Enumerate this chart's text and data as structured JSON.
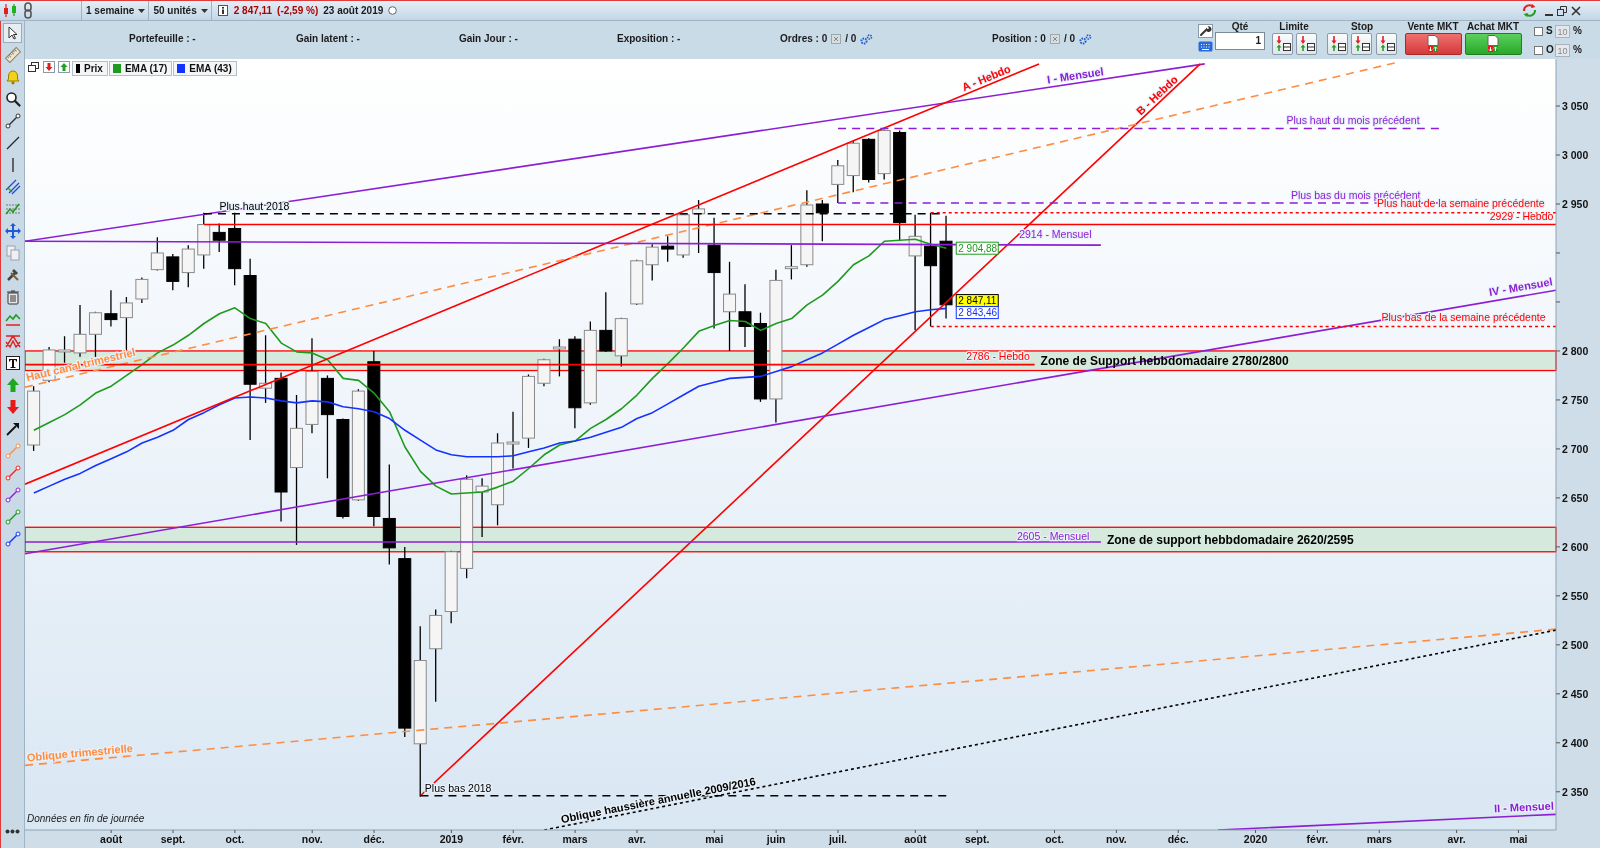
{
  "chart_data": {
    "type": "candlestick",
    "x": [
      "2018-07-02",
      "2018-07-09",
      "2018-07-16",
      "2018-07-23",
      "2018-07-30",
      "2018-08-06",
      "2018-08-13",
      "2018-08-20",
      "2018-08-27",
      "2018-09-03",
      "2018-09-10",
      "2018-09-17",
      "2018-09-24",
      "2018-10-01",
      "2018-10-08",
      "2018-10-15",
      "2018-10-22",
      "2018-10-29",
      "2018-11-05",
      "2018-11-12",
      "2018-11-19",
      "2018-11-26",
      "2018-12-03",
      "2018-12-10",
      "2018-12-17",
      "2018-12-24",
      "2018-12-31",
      "2019-01-07",
      "2019-01-14",
      "2019-01-21",
      "2019-01-28",
      "2019-02-04",
      "2019-02-11",
      "2019-02-18",
      "2019-02-25",
      "2019-03-04",
      "2019-03-11",
      "2019-03-18",
      "2019-03-25",
      "2019-04-01",
      "2019-04-08",
      "2019-04-15",
      "2019-04-22",
      "2019-04-29",
      "2019-05-06",
      "2019-05-13",
      "2019-05-20",
      "2019-05-27",
      "2019-06-03",
      "2019-06-10",
      "2019-06-17",
      "2019-06-24",
      "2019-07-01",
      "2019-07-08",
      "2019-07-15",
      "2019-07-22",
      "2019-07-29",
      "2019-08-05",
      "2019-08-12",
      "2019-08-19"
    ],
    "xlim": [
      "2018-06-28",
      "2020-05-21"
    ],
    "xticks": [
      {
        "value": "2018-08-06",
        "label": "août"
      },
      {
        "value": "2018-09-03",
        "label": "sept."
      },
      {
        "value": "2018-10-01",
        "label": "oct."
      },
      {
        "value": "2018-11-05",
        "label": "nov."
      },
      {
        "value": "2018-12-03",
        "label": "déc."
      },
      {
        "value": "2019-01-07",
        "label": "2019"
      },
      {
        "value": "2019-02-04",
        "label": "févr."
      },
      {
        "value": "2019-03-04",
        "label": "mars"
      },
      {
        "value": "2019-04-01",
        "label": "avr."
      },
      {
        "value": "2019-05-06",
        "label": "mai"
      },
      {
        "value": "2019-06-03",
        "label": "juin"
      },
      {
        "value": "2019-07-01",
        "label": "juil."
      },
      {
        "value": "2019-08-05",
        "label": "août"
      },
      {
        "value": "2019-09-02",
        "label": "sept."
      },
      {
        "value": "2019-10-07",
        "label": "oct."
      },
      {
        "value": "2019-11-04",
        "label": "nov."
      },
      {
        "value": "2019-12-02",
        "label": "déc."
      },
      {
        "value": "2020-01-06",
        "label": "2020"
      },
      {
        "value": "2020-02-03",
        "label": "févr."
      },
      {
        "value": "2020-03-02",
        "label": "mars"
      },
      {
        "value": "2020-04-06",
        "label": "avr."
      },
      {
        "value": "2020-05-04",
        "label": "mai"
      }
    ],
    "ylim": [
      2311,
      3098
    ],
    "yticks": [
      {
        "value": 2350,
        "label": "2 350"
      },
      {
        "value": 2400,
        "label": "2 400"
      },
      {
        "value": 2450,
        "label": "2 450"
      },
      {
        "value": 2500,
        "label": "2 500"
      },
      {
        "value": 2550,
        "label": "2 550"
      },
      {
        "value": 2600,
        "label": "2 600"
      },
      {
        "value": 2650,
        "label": "2 650"
      },
      {
        "value": 2700,
        "label": "2 700"
      },
      {
        "value": 2750,
        "label": "2 750"
      },
      {
        "value": 2800,
        "label": "2 800"
      },
      {
        "value": 2850,
        "label": null
      },
      {
        "value": 2900,
        "label": null
      },
      {
        "value": 2950,
        "label": "2 950"
      },
      {
        "value": 3000,
        "label": "3 000"
      },
      {
        "value": 3050,
        "label": "3 050"
      }
    ],
    "legend": "top left",
    "series": [
      {
        "name": "Prix",
        "color": "#000000",
        "colors": [
          "#f5f5f5",
          "#f5f5f5",
          "#f5f5f5",
          "#f5f5f5",
          "#f5f5f5",
          "#000000",
          "#f5f5f5",
          "#f5f5f5",
          "#f5f5f5",
          "#000000",
          "#f5f5f5",
          "#f5f5f5",
          "#000000",
          "#000000",
          "#000000",
          "#f5f5f5",
          "#000000",
          "#f5f5f5",
          "#f5f5f5",
          "#000000",
          "#000000",
          "#f5f5f5",
          "#000000",
          "#000000",
          "#000000",
          "#f5f5f5",
          "#f5f5f5",
          "#f5f5f5",
          "#f5f5f5",
          "#f5f5f5",
          "#f5f5f5",
          "#f5f5f5",
          "#f5f5f5",
          "#f5f5f5",
          "#f5f5f5",
          "#000000",
          "#f5f5f5",
          "#000000",
          "#f5f5f5",
          "#f5f5f5",
          "#f5f5f5",
          "#000000",
          "#f5f5f5",
          "#f5f5f5",
          "#000000",
          "#f5f5f5",
          "#000000",
          "#000000",
          "#f5f5f5",
          "#f5f5f5",
          "#f5f5f5",
          "#000000",
          "#f5f5f5",
          "#f5f5f5",
          "#000000",
          "#f5f5f5",
          "#000000",
          "#f5f5f5",
          "#000000",
          "#000000"
        ],
        "ohlc": [
          [
            2704,
            2764,
            2698,
            2759
          ],
          [
            2770,
            2804,
            2768,
            2801
          ],
          [
            2799,
            2815,
            2788,
            2801
          ],
          [
            2798,
            2847,
            2794,
            2817
          ],
          [
            2817,
            2840,
            2794,
            2839
          ],
          [
            2838,
            2862,
            2825,
            2832
          ],
          [
            2834,
            2855,
            2801,
            2849
          ],
          [
            2853,
            2875,
            2849,
            2873
          ],
          [
            2883,
            2916,
            2882,
            2900
          ],
          [
            2896,
            2899,
            2862,
            2871
          ],
          [
            2880,
            2908,
            2865,
            2904
          ],
          [
            2898,
            2941,
            2884,
            2929
          ],
          [
            2921,
            2930,
            2901,
            2913
          ],
          [
            2925,
            2941,
            2867,
            2884
          ],
          [
            2877,
            2894,
            2709,
            2766
          ],
          [
            2762,
            2816,
            2747,
            2767
          ],
          [
            2772,
            2778,
            2626,
            2656
          ],
          [
            2681,
            2755,
            2602,
            2721
          ],
          [
            2725,
            2813,
            2716,
            2779
          ],
          [
            2772,
            2775,
            2670,
            2735
          ],
          [
            2730,
            2731,
            2629,
            2631
          ],
          [
            2648,
            2761,
            2647,
            2759
          ],
          [
            2789,
            2800,
            2621,
            2631
          ],
          [
            2629,
            2684,
            2582,
            2599
          ],
          [
            2588,
            2600,
            2406,
            2415
          ],
          [
            2399,
            2519,
            2345,
            2484
          ],
          [
            2496,
            2536,
            2442,
            2530
          ],
          [
            2534,
            2596,
            2522,
            2595
          ],
          [
            2578,
            2673,
            2568,
            2669
          ],
          [
            2656,
            2670,
            2610,
            2662
          ],
          [
            2643,
            2716,
            2622,
            2706
          ],
          [
            2705,
            2738,
            2680,
            2707
          ],
          [
            2711,
            2776,
            2701,
            2774
          ],
          [
            2767,
            2792,
            2764,
            2791
          ],
          [
            2802,
            2812,
            2774,
            2804
          ],
          [
            2812,
            2815,
            2721,
            2742
          ],
          [
            2747,
            2830,
            2745,
            2821
          ],
          [
            2821,
            2860,
            2799,
            2800
          ],
          [
            2795,
            2834,
            2784,
            2833
          ],
          [
            2848,
            2893,
            2847,
            2892
          ],
          [
            2888,
            2909,
            2872,
            2906
          ],
          [
            2907,
            2917,
            2891,
            2904
          ],
          [
            2898,
            2940,
            2895,
            2939
          ],
          [
            2940,
            2954,
            2900,
            2945
          ],
          [
            2908,
            2936,
            2823,
            2880
          ],
          [
            2840,
            2891,
            2800,
            2858
          ],
          [
            2840,
            2868,
            2804,
            2825
          ],
          [
            2828,
            2839,
            2748,
            2751
          ],
          [
            2751,
            2883,
            2727,
            2872
          ],
          [
            2884,
            2908,
            2873,
            2886
          ],
          [
            2888,
            2964,
            2886,
            2949
          ],
          [
            2950,
            2954,
            2912,
            2941
          ],
          [
            2970,
            2995,
            2951,
            2989
          ],
          [
            2979,
            3014,
            2962,
            3012
          ],
          [
            3016,
            3017,
            2972,
            2975
          ],
          [
            2981,
            3026,
            2975,
            3025
          ],
          [
            3023,
            3025,
            2913,
            2931
          ],
          [
            2897,
            2939,
            2821,
            2917
          ],
          [
            2907,
            2941,
            2825,
            2887
          ],
          [
            2912,
            2938,
            2833,
            2847.11
          ]
        ],
        "value_labels": [
          null,
          null,
          null,
          null,
          null,
          null,
          null,
          null,
          null,
          null,
          null,
          null,
          null,
          null,
          null,
          null,
          null,
          null,
          null,
          null,
          null,
          null,
          null,
          null,
          null,
          null,
          null,
          null,
          null,
          null,
          null,
          null,
          null,
          null,
          null,
          null,
          null,
          null,
          null,
          null,
          null,
          null,
          null,
          null,
          null,
          null,
          null,
          null,
          null,
          null,
          null,
          null,
          null,
          null,
          null,
          null,
          null,
          null,
          null,
          "2 847,11"
        ]
      },
      {
        "name": "EMA (17)",
        "type": "line",
        "color": "#1e9a1e",
        "values": [
          2719,
          2727,
          2735,
          2745,
          2757,
          2764,
          2775,
          2786,
          2798,
          2806,
          2816,
          2828,
          2838,
          2844,
          2833,
          2828,
          2808,
          2799,
          2798,
          2791,
          2772,
          2770,
          2757,
          2738,
          2702,
          2677,
          2662,
          2654,
          2655,
          2656,
          2661,
          2667,
          2680,
          2694,
          2704,
          2708,
          2721,
          2730,
          2741,
          2755,
          2772,
          2787,
          2803,
          2820,
          2826,
          2831,
          2830,
          2821,
          2828,
          2833,
          2847,
          2857,
          2871,
          2888,
          2897,
          2912,
          2913,
          2914,
          2909,
          2904.88
        ],
        "value_labels": [
          null,
          null,
          null,
          null,
          null,
          null,
          null,
          null,
          null,
          null,
          null,
          null,
          null,
          null,
          null,
          null,
          null,
          null,
          null,
          null,
          null,
          null,
          null,
          null,
          null,
          null,
          null,
          null,
          null,
          null,
          null,
          null,
          null,
          null,
          null,
          null,
          null,
          null,
          null,
          null,
          null,
          null,
          null,
          null,
          null,
          null,
          null,
          null,
          null,
          null,
          null,
          null,
          null,
          null,
          null,
          null,
          null,
          null,
          null,
          "2 904,88"
        ]
      },
      {
        "name": "EMA (43)",
        "type": "line",
        "color": "#1432ff",
        "values": [
          2655,
          2662,
          2669,
          2675,
          2683,
          2690,
          2697,
          2706,
          2712,
          2719,
          2730,
          2737,
          2745,
          2752,
          2753,
          2752,
          2749,
          2747,
          2749,
          2748,
          2743,
          2741,
          2738,
          2731,
          2719,
          2709,
          2699,
          2694,
          2692,
          2692,
          2692,
          2693,
          2697,
          2701,
          2706,
          2708,
          2712,
          2717,
          2722,
          2731,
          2737,
          2746,
          2755,
          2764,
          2768,
          2772,
          2773,
          2774,
          2779,
          2784,
          2791,
          2798,
          2807,
          2816,
          2824,
          2832,
          2836,
          2840,
          2842,
          2843.46
        ],
        "value_labels": [
          null,
          null,
          null,
          null,
          null,
          null,
          null,
          null,
          null,
          null,
          null,
          null,
          null,
          null,
          null,
          null,
          null,
          null,
          null,
          null,
          null,
          null,
          null,
          null,
          null,
          null,
          null,
          null,
          null,
          null,
          null,
          null,
          null,
          null,
          null,
          null,
          null,
          null,
          null,
          null,
          null,
          null,
          null,
          null,
          null,
          null,
          null,
          null,
          null,
          null,
          null,
          null,
          null,
          null,
          null,
          null,
          null,
          null,
          null,
          "2 843,46"
        ]
      },
      {
        "type": "line",
        "color": "#8c1fd4",
        "x": [
          "2018-06-28",
          "2019-12-14"
        ],
        "values": [
          2912,
          3093
        ]
      },
      {
        "type": "line",
        "color": "#ff0000",
        "x": [
          "2018-06-28",
          "2019-09-30"
        ],
        "values": [
          2664,
          3093
        ]
      },
      {
        "type": "line",
        "color": "#ff0000",
        "x": [
          "2018-12-24",
          "2019-12-12"
        ],
        "values": [
          2346,
          3093
        ]
      },
      {
        "type": "line",
        "color": "#ff8c40",
        "line_style": "dashed",
        "x": [
          "2018-06-28",
          "2020-03-09"
        ],
        "values": [
          2763,
          3094
        ]
      },
      {
        "type": "line",
        "color": "#ff8c40",
        "line_style": "dashed",
        "x": [
          "2018-06-28",
          "2020-05-21"
        ],
        "values": [
          2377,
          2516
        ]
      },
      {
        "type": "line",
        "color": "#000000",
        "line_style": "dotted",
        "x": [
          "2019-02-18",
          "2020-05-21"
        ],
        "values": [
          2311,
          2515
        ]
      },
      {
        "type": "line",
        "color": "#8c1fd4",
        "x": [
          "2018-06-28",
          "2020-05-21"
        ],
        "values": [
          2593,
          2862
        ]
      },
      {
        "type": "line",
        "color": "#8c1fd4",
        "x": [
          "2019-12-20",
          "2020-05-21"
        ],
        "values": [
          2311,
          2327
        ]
      },
      {
        "type": "line",
        "color": "#8c1fd4",
        "x": [
          "2018-06-28",
          "2019-10-28"
        ],
        "values": [
          2912,
          2908
        ]
      },
      {
        "type": "line",
        "color": "#8c1fd4",
        "x": [
          "2018-06-28",
          "2019-10-28"
        ],
        "values": [
          2605,
          2605
        ]
      },
      {
        "type": "line",
        "color": "#ff0000",
        "x": [
          "2018-06-28",
          "2019-09-28"
        ],
        "values": [
          2786,
          2786
        ]
      },
      {
        "type": "line",
        "color": "#ff0000",
        "x": [
          "2018-09-17",
          "2020-05-21"
        ],
        "values": [
          2929,
          2929
        ]
      },
      {
        "type": "line",
        "color": "#000000",
        "line_style": "dashed",
        "x": [
          "2018-09-17",
          "2019-08-16"
        ],
        "values": [
          2940,
          2940
        ]
      },
      {
        "type": "line",
        "color": "#000000",
        "line_style": "dashed",
        "x": [
          "2018-12-24",
          "2019-08-19"
        ],
        "values": [
          2346,
          2346
        ]
      },
      {
        "type": "line",
        "color": "#8c1fd4",
        "line_style": "dashed",
        "x": [
          "2019-07-01",
          "2020-03-29"
        ],
        "values": [
          3027,
          3027
        ]
      },
      {
        "type": "line",
        "color": "#8c1fd4",
        "line_style": "dashed",
        "x": [
          "2019-07-01",
          "2020-03-29"
        ],
        "values": [
          2951,
          2951
        ]
      },
      {
        "type": "line",
        "color": "#ff0000",
        "line_style": "dotted",
        "x": [
          "2019-08-12",
          "2020-05-21"
        ],
        "values": [
          2941,
          2941
        ]
      },
      {
        "type": "line",
        "color": "#ff0000",
        "line_style": "dotted",
        "x": [
          "2019-08-12",
          "2020-05-21"
        ],
        "values": [
          2825,
          2825
        ]
      }
    ],
    "bands": [
      {
        "axis": "y",
        "from": 2780,
        "to": 2800,
        "label": "Zone de Support hebbdomadaire 2780/2800",
        "color": "#d5e9dd"
      },
      {
        "axis": "y",
        "from": 2595,
        "to": 2620,
        "label": "Zone de support hebbdomadaire 2620/2595",
        "color": "#d5e9dd"
      }
    ],
    "annotations": [
      "1 semaine",
      "50 unités",
      "2 847,11",
      "(-2,59 %)",
      "23 août 2019",
      "Portefeuille : -",
      "Gain latent : -",
      "Gain Jour : -",
      "Exposition : -",
      "Ordres : 0",
      "/ 0",
      "Position : 0",
      "/ 0",
      "Qté",
      "1",
      "Limite",
      "Stop",
      "Vente MKT",
      "Achat MKT",
      "S",
      "10",
      "%",
      "O",
      "10",
      "%",
      "Données en fin de journée",
      {
        "text": "A - Hebdo",
        "x": "2019-08-27",
        "y": 3065
      },
      {
        "text": "B - Hebdo",
        "x": "2019-11-15",
        "y": 3040
      },
      {
        "text": "I - Mensuel",
        "x": "2019-10-04",
        "y": 3073
      },
      {
        "text": "Plus haut du mois précédent",
        "x": "2020-01-20",
        "y": 3032
      },
      {
        "text": "Plus bas du mois précédent",
        "x": "2020-01-22",
        "y": 2955
      },
      {
        "text": "Plus haut de la semaine précédente",
        "x": "2020-03-01",
        "y": 2947
      },
      {
        "text": "2929 - Hebdo",
        "x": "2020-04-21",
        "y": 2934
      },
      {
        "text": "2914 - Mensuel",
        "x": "2019-09-21",
        "y": 2915
      },
      {
        "text": "IV - Mensuel",
        "x": "2020-04-21",
        "y": 2856
      },
      {
        "text": "Plus bas de la semaine précédente",
        "x": "2020-03-03",
        "y": 2831
      },
      {
        "text": "2786 - Hebdo",
        "x": "2019-08-28",
        "y": 2791
      },
      {
        "text": "2605 - Mensuel",
        "x": "2019-09-20",
        "y": 2607
      },
      {
        "text": "Plus haut 2018",
        "x": "2018-09-24",
        "y": 2944
      },
      {
        "text": "Plus bas 2018",
        "x": "2018-12-26",
        "y": 2350
      },
      {
        "text": "Haut canal trimestriel",
        "x": "2018-06-29",
        "y": 2769
      },
      {
        "text": "Oblique trimestrielle",
        "x": "2018-06-29",
        "y": 2381
      },
      {
        "text": "Oblique haussière annuelle 2009/2016",
        "x": "2019-02-26",
        "y": 2318
      },
      {
        "text": "II - Mensuel",
        "x": "2020-04-23",
        "y": 2329
      }
    ]
  }
}
